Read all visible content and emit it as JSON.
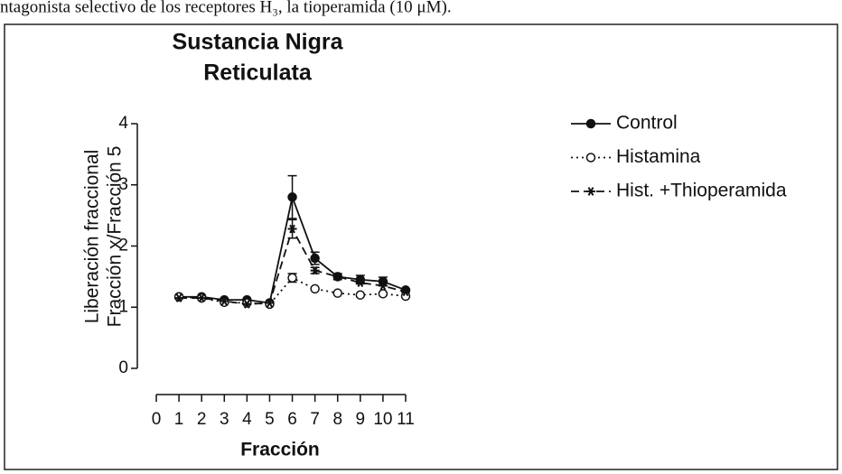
{
  "caption": "ntagonista selectivo de los receptores H₃, la tioperamida (10 μM).",
  "chart_data": {
    "type": "line",
    "title": [
      "Sustancia Nigra",
      "Reticulata"
    ],
    "ylabel": [
      "Liberación fraccional",
      "Fracción x/Fracción 5"
    ],
    "xlabel": "Fracción",
    "x": [
      1,
      2,
      3,
      4,
      5,
      6,
      7,
      8,
      9,
      10,
      11
    ],
    "xlim": [
      0,
      11
    ],
    "xticks": [
      0,
      1,
      2,
      3,
      4,
      5,
      6,
      7,
      8,
      9,
      10,
      11
    ],
    "ylim": [
      0,
      4
    ],
    "yticks": [
      0,
      1,
      2,
      3,
      4
    ],
    "legend": "right",
    "series": [
      {
        "name": "Control",
        "color": "#111111",
        "dash": "solid",
        "marker": "filled-circle",
        "values": [
          1.17,
          1.17,
          1.12,
          1.12,
          1.07,
          2.8,
          1.8,
          1.5,
          1.45,
          1.42,
          1.28
        ],
        "errors": [
          null,
          null,
          null,
          null,
          null,
          0.35,
          0.1,
          0.05,
          0.07,
          0.07,
          null
        ]
      },
      {
        "name": "Histamina",
        "color": "#111111",
        "dash": "dotted",
        "marker": "open-circle",
        "values": [
          1.17,
          1.15,
          1.08,
          1.07,
          1.05,
          1.48,
          1.3,
          1.23,
          1.2,
          1.22,
          1.18
        ],
        "errors": [
          null,
          null,
          null,
          null,
          null,
          0.07,
          null,
          null,
          null,
          null,
          null
        ]
      },
      {
        "name": "Hist. +Thioperamida",
        "color": "#111111",
        "dash": "dashed",
        "marker": "star",
        "values": [
          1.15,
          1.15,
          1.1,
          1.05,
          1.07,
          2.28,
          1.6,
          1.5,
          1.4,
          1.35,
          1.25
        ],
        "errors": [
          null,
          null,
          null,
          null,
          null,
          0.15,
          0.05,
          null,
          null,
          null,
          null
        ]
      }
    ]
  }
}
